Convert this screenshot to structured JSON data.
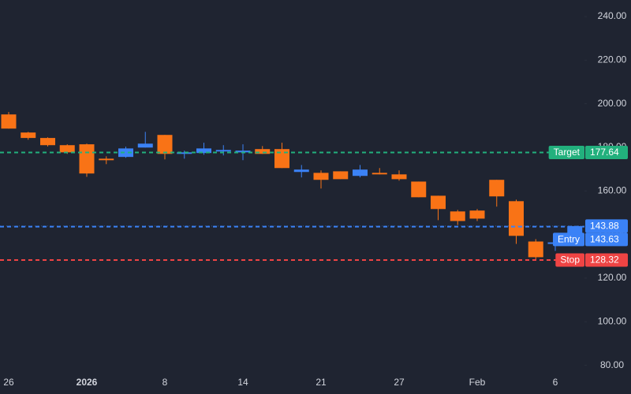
{
  "chart_data": {
    "type": "candlestick",
    "categories": [
      "26",
      null,
      null,
      null,
      "2026",
      null,
      null,
      null,
      "8",
      null,
      null,
      null,
      "14",
      null,
      null,
      null,
      "21",
      null,
      null,
      null,
      "27",
      null,
      null,
      null,
      "Feb",
      null,
      null,
      null,
      "6",
      null
    ],
    "open": [
      195.1,
      186.8,
      184.3,
      181.0,
      181.4,
      174.8,
      175.6,
      179.9,
      185.7,
      177.0,
      177.4,
      178.1,
      177.7,
      179.2,
      179.2,
      168.7,
      168.3,
      169.0,
      166.9,
      168.3,
      167.6,
      164.3,
      157.8,
      150.6,
      151.0,
      165.1,
      155.3,
      136.8,
      135.7,
      140.1
    ],
    "high": [
      196.2,
      187.1,
      184.6,
      181.4,
      181.7,
      175.9,
      180.3,
      187.1,
      185.7,
      178.5,
      182.1,
      181.0,
      181.4,
      180.6,
      182.1,
      171.9,
      169.4,
      169.0,
      171.9,
      170.5,
      169.4,
      164.3,
      157.8,
      151.3,
      151.7,
      165.1,
      156.0,
      137.9,
      136.4,
      143.88
    ],
    "low": [
      188.6,
      183.5,
      180.4,
      177.0,
      166.5,
      172.3,
      175.2,
      179.9,
      174.5,
      174.8,
      176.6,
      176.3,
      174.1,
      177.0,
      170.5,
      166.2,
      161.1,
      165.4,
      166.2,
      167.6,
      164.7,
      157.1,
      146.6,
      144.4,
      146.2,
      152.8,
      135.7,
      128.5,
      132.5,
      140.1
    ],
    "close": [
      188.6,
      184.3,
      181.0,
      177.7,
      168.0,
      174.1,
      179.5,
      181.7,
      177.0,
      177.7,
      179.5,
      178.8,
      178.5,
      177.0,
      170.5,
      169.8,
      165.1,
      165.4,
      169.8,
      167.6,
      165.4,
      157.1,
      151.7,
      146.2,
      147.3,
      157.5,
      139.4,
      129.6,
      136.4,
      143.88
    ],
    "up_color": "#3b82f6",
    "down_color": "#f97316",
    "ylim": [
      76.6,
      247.6
    ],
    "yticks": [
      {
        "value": 80,
        "label": "80.00"
      },
      {
        "value": 100,
        "label": "100.00"
      },
      {
        "value": 120,
        "label": "120.00"
      },
      {
        "value": 140,
        "label": "140.00"
      },
      {
        "value": 160,
        "label": "160.00"
      },
      {
        "value": 180,
        "label": "180.00"
      },
      {
        "value": 200,
        "label": "200.00"
      },
      {
        "value": 220,
        "label": "220.00"
      },
      {
        "value": 240,
        "label": "240.00"
      }
    ],
    "grid": false,
    "last_price": 143.88,
    "lines": [
      {
        "name": "Target",
        "value": 177.64,
        "color": "#22b07d"
      },
      {
        "name": "Entry",
        "value": 143.63,
        "color": "#3b82f6"
      },
      {
        "name": "Stop",
        "value": 128.32,
        "color": "#ef4444"
      }
    ]
  }
}
